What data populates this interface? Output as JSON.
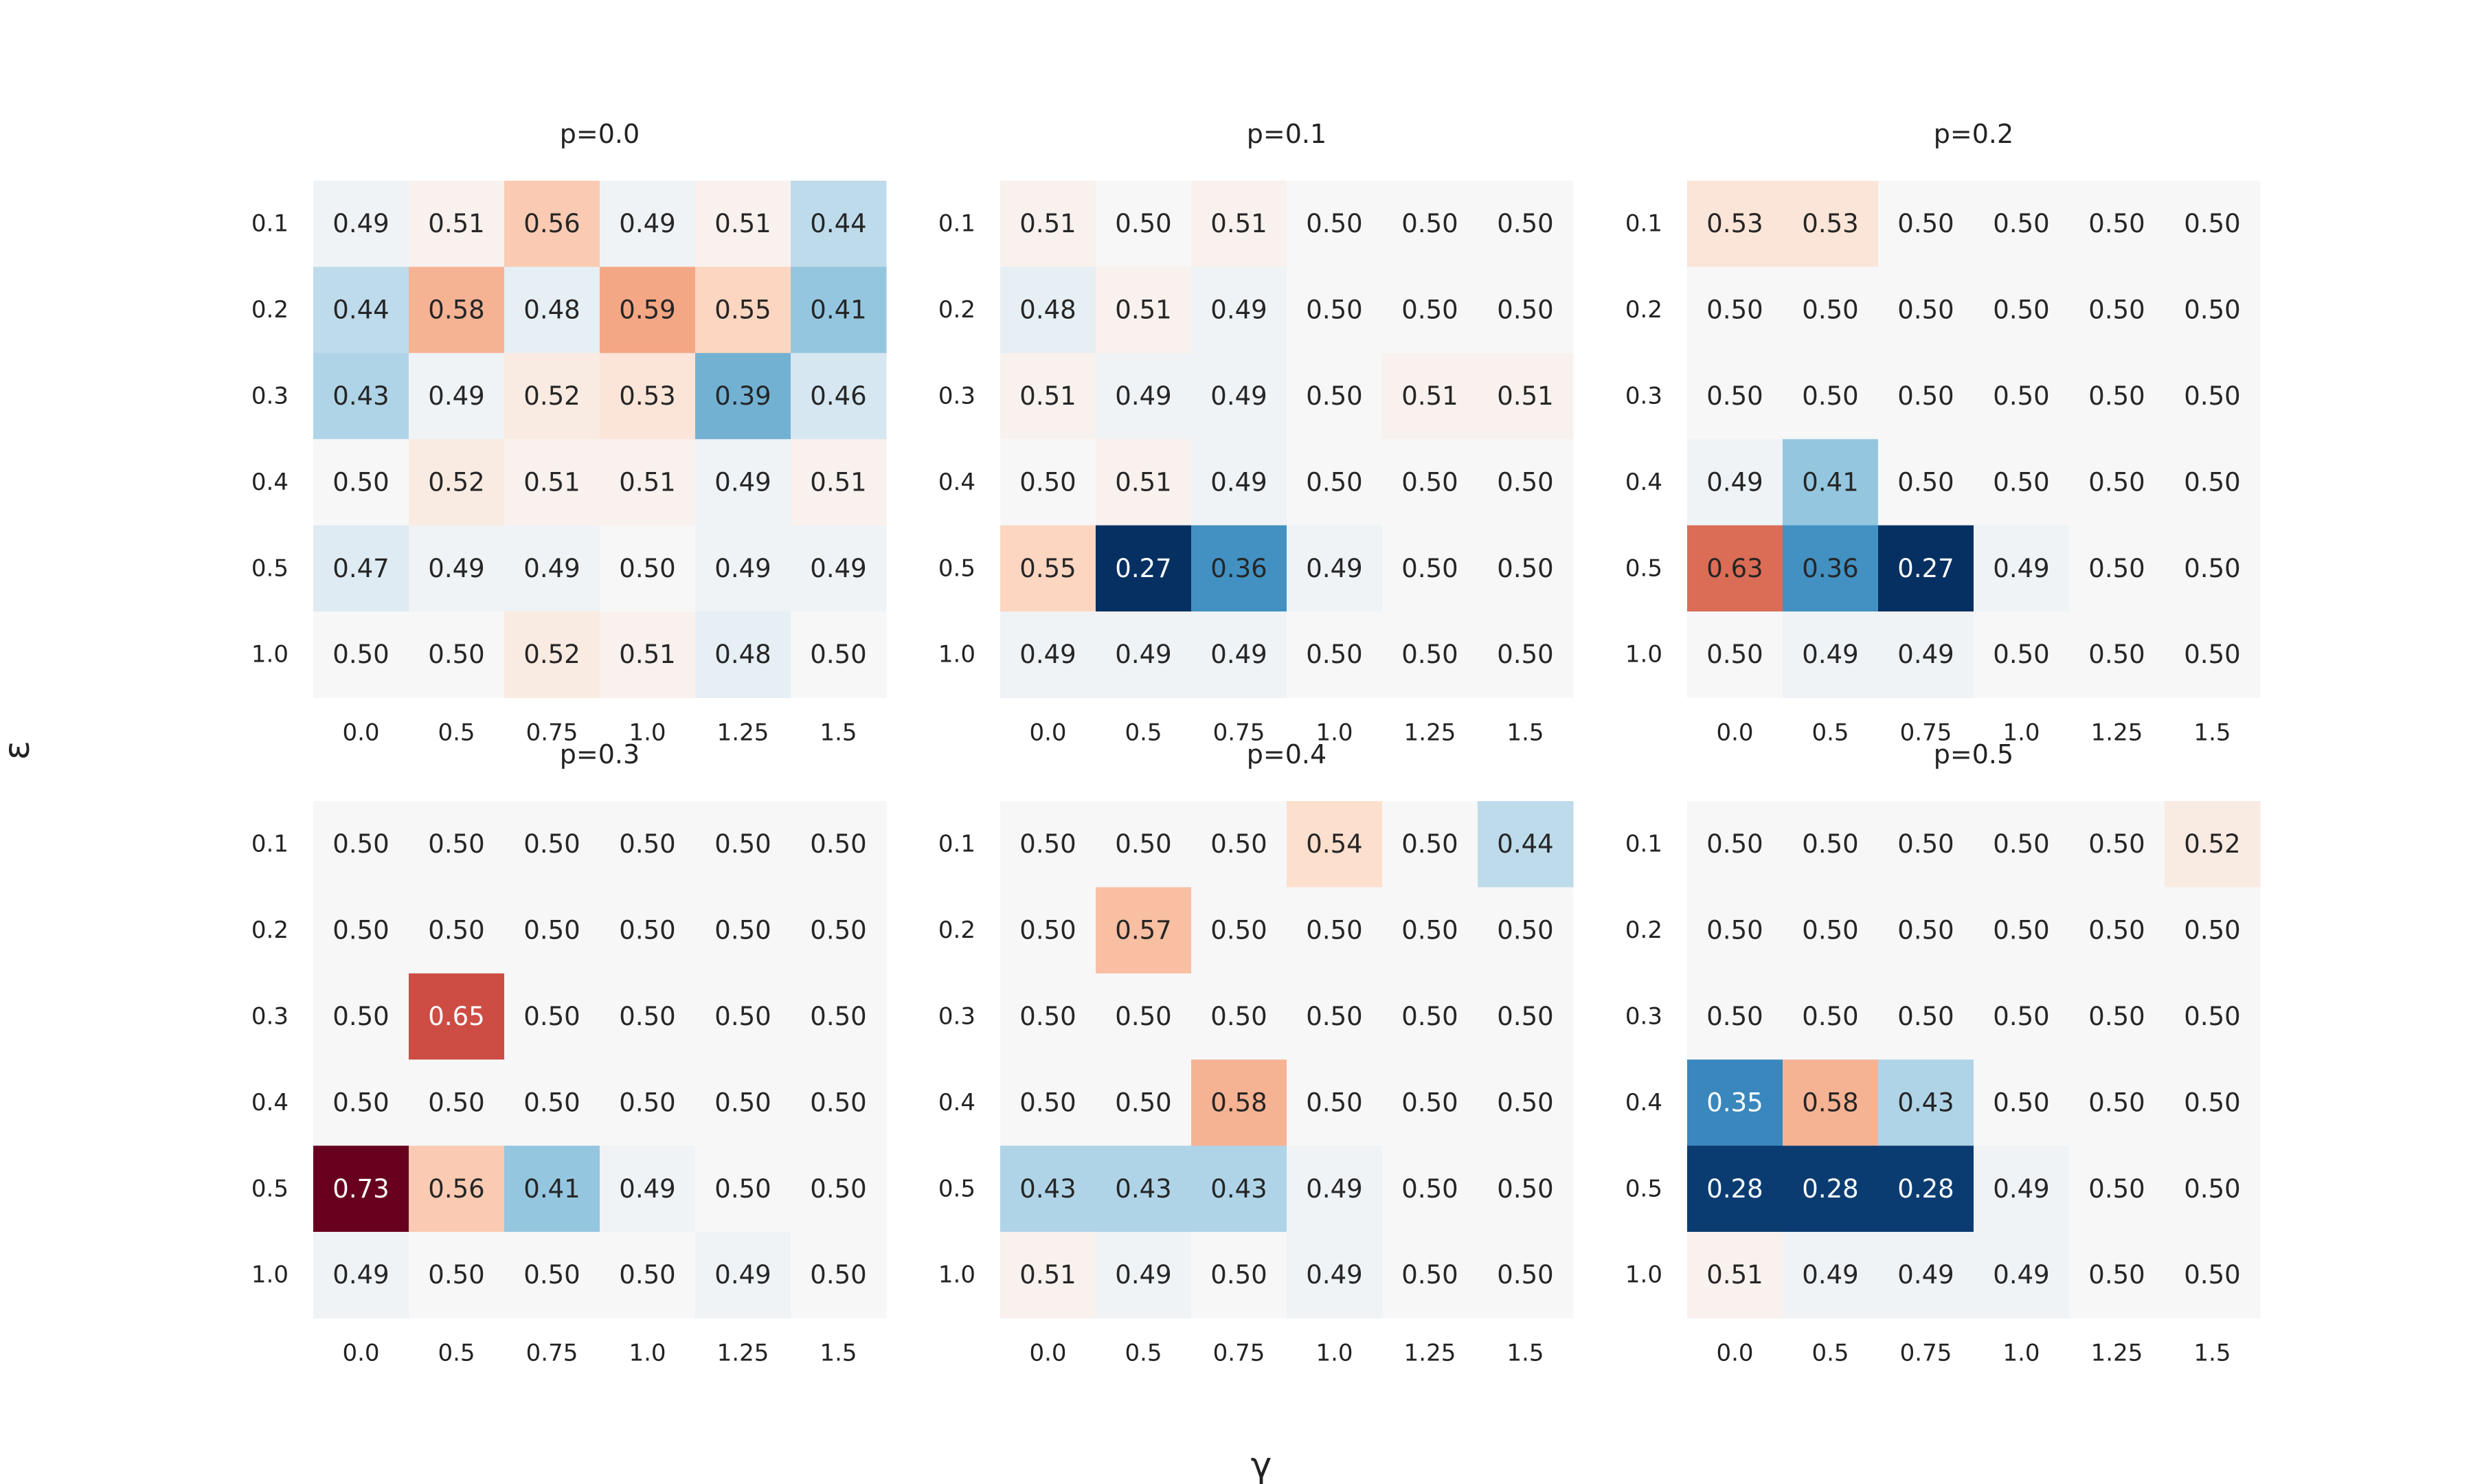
{
  "figure": {
    "ylabel": "ε",
    "xlabel": "γ"
  },
  "chart_data": [
    {
      "type": "heatmap",
      "title": "p=0.0",
      "x": [
        "0.0",
        "0.5",
        "0.75",
        "1.0",
        "1.25",
        "1.5"
      ],
      "y": [
        "0.1",
        "0.2",
        "0.3",
        "0.4",
        "0.5",
        "1.0"
      ],
      "values": [
        [
          0.49,
          0.51,
          0.56,
          0.49,
          0.51,
          0.44
        ],
        [
          0.44,
          0.58,
          0.48,
          0.59,
          0.55,
          0.41
        ],
        [
          0.43,
          0.49,
          0.52,
          0.53,
          0.39,
          0.46
        ],
        [
          0.5,
          0.52,
          0.51,
          0.51,
          0.49,
          0.51
        ],
        [
          0.47,
          0.49,
          0.49,
          0.5,
          0.49,
          0.49
        ],
        [
          0.5,
          0.5,
          0.52,
          0.51,
          0.48,
          0.5
        ]
      ]
    },
    {
      "type": "heatmap",
      "title": "p=0.1",
      "x": [
        "0.0",
        "0.5",
        "0.75",
        "1.0",
        "1.25",
        "1.5"
      ],
      "y": [
        "0.1",
        "0.2",
        "0.3",
        "0.4",
        "0.5",
        "1.0"
      ],
      "values": [
        [
          0.51,
          0.5,
          0.51,
          0.5,
          0.5,
          0.5
        ],
        [
          0.48,
          0.51,
          0.49,
          0.5,
          0.5,
          0.5
        ],
        [
          0.51,
          0.49,
          0.49,
          0.5,
          0.51,
          0.51
        ],
        [
          0.5,
          0.51,
          0.49,
          0.5,
          0.5,
          0.5
        ],
        [
          0.55,
          0.27,
          0.36,
          0.49,
          0.5,
          0.5
        ],
        [
          0.49,
          0.49,
          0.49,
          0.5,
          0.5,
          0.5
        ]
      ]
    },
    {
      "type": "heatmap",
      "title": "p=0.2",
      "x": [
        "0.0",
        "0.5",
        "0.75",
        "1.0",
        "1.25",
        "1.5"
      ],
      "y": [
        "0.1",
        "0.2",
        "0.3",
        "0.4",
        "0.5",
        "1.0"
      ],
      "values": [
        [
          0.53,
          0.53,
          0.5,
          0.5,
          0.5,
          0.5
        ],
        [
          0.5,
          0.5,
          0.5,
          0.5,
          0.5,
          0.5
        ],
        [
          0.5,
          0.5,
          0.5,
          0.5,
          0.5,
          0.5
        ],
        [
          0.49,
          0.41,
          0.5,
          0.5,
          0.5,
          0.5
        ],
        [
          0.63,
          0.36,
          0.27,
          0.49,
          0.5,
          0.5
        ],
        [
          0.5,
          0.49,
          0.49,
          0.5,
          0.5,
          0.5
        ]
      ]
    },
    {
      "type": "heatmap",
      "title": "p=0.3",
      "x": [
        "0.0",
        "0.5",
        "0.75",
        "1.0",
        "1.25",
        "1.5"
      ],
      "y": [
        "0.1",
        "0.2",
        "0.3",
        "0.4",
        "0.5",
        "1.0"
      ],
      "values": [
        [
          0.5,
          0.5,
          0.5,
          0.5,
          0.5,
          0.5
        ],
        [
          0.5,
          0.5,
          0.5,
          0.5,
          0.5,
          0.5
        ],
        [
          0.5,
          0.65,
          0.5,
          0.5,
          0.5,
          0.5
        ],
        [
          0.5,
          0.5,
          0.5,
          0.5,
          0.5,
          0.5
        ],
        [
          0.73,
          0.56,
          0.41,
          0.49,
          0.5,
          0.5
        ],
        [
          0.49,
          0.5,
          0.5,
          0.5,
          0.49,
          0.5
        ]
      ]
    },
    {
      "type": "heatmap",
      "title": "p=0.4",
      "x": [
        "0.0",
        "0.5",
        "0.75",
        "1.0",
        "1.25",
        "1.5"
      ],
      "y": [
        "0.1",
        "0.2",
        "0.3",
        "0.4",
        "0.5",
        "1.0"
      ],
      "values": [
        [
          0.5,
          0.5,
          0.5,
          0.54,
          0.5,
          0.44
        ],
        [
          0.5,
          0.57,
          0.5,
          0.5,
          0.5,
          0.5
        ],
        [
          0.5,
          0.5,
          0.5,
          0.5,
          0.5,
          0.5
        ],
        [
          0.5,
          0.5,
          0.58,
          0.5,
          0.5,
          0.5
        ],
        [
          0.43,
          0.43,
          0.43,
          0.49,
          0.5,
          0.5
        ],
        [
          0.51,
          0.49,
          0.5,
          0.49,
          0.5,
          0.5
        ]
      ]
    },
    {
      "type": "heatmap",
      "title": "p=0.5",
      "x": [
        "0.0",
        "0.5",
        "0.75",
        "1.0",
        "1.25",
        "1.5"
      ],
      "y": [
        "0.1",
        "0.2",
        "0.3",
        "0.4",
        "0.5",
        "1.0"
      ],
      "values": [
        [
          0.5,
          0.5,
          0.5,
          0.5,
          0.5,
          0.52
        ],
        [
          0.5,
          0.5,
          0.5,
          0.5,
          0.5,
          0.5
        ],
        [
          0.5,
          0.5,
          0.5,
          0.5,
          0.5,
          0.5
        ],
        [
          0.35,
          0.58,
          0.43,
          0.5,
          0.5,
          0.5
        ],
        [
          0.28,
          0.28,
          0.28,
          0.49,
          0.5,
          0.5
        ],
        [
          0.51,
          0.49,
          0.49,
          0.49,
          0.5,
          0.5
        ]
      ]
    }
  ]
}
